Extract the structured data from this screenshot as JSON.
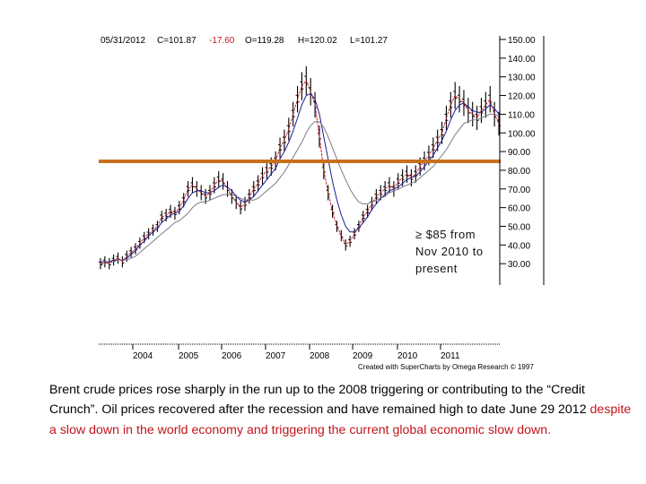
{
  "header": {
    "date": "05/31/2012",
    "close": "C=101.87",
    "change": "-17.60",
    "open": "O=119.28",
    "high": "H=120.02",
    "low": "L=101.27"
  },
  "annotation": [
    "≥ $85 from",
    "Nov 2010 to",
    "present"
  ],
  "credit": "Created with SuperCharts by Omega Research © 1997",
  "caption": {
    "part1": "Brent crude prices rose sharply in the run up to the 2008 triggering or contributing to the  “Credit Crunch”. Oil prices recovered after the recession and have remained high to date June 29  2012 ",
    "part2": "despite a slow down in the world economy and triggering the current global economic slow down."
  },
  "colors": {
    "threshold": "#c8701e",
    "ma_red": "#c0161c",
    "ma_blue": "#1c1c9c",
    "ma_gray": "#7a7a8a",
    "bars": "#000000",
    "caption_red": "#c0161c"
  },
  "chart_data": {
    "type": "line",
    "threshold": 85,
    "x_ticks": [
      "2004",
      "2005",
      "2006",
      "2007",
      "2008",
      "2009",
      "2010",
      "2011"
    ],
    "y_ticks": [
      "150.00",
      "140.00",
      "130.00",
      "120.00",
      "110.00",
      "100.00",
      "90.00",
      "80.00",
      "70.00",
      "60.00",
      "50.00",
      "40.00",
      "30.00"
    ],
    "ylim": [
      25,
      152
    ],
    "series": [
      {
        "values": [
          30,
          31,
          30,
          32,
          33,
          31,
          34,
          36,
          38,
          41,
          44,
          46,
          48,
          50,
          55,
          56,
          58,
          57,
          60,
          64,
          70,
          72,
          70,
          68,
          66,
          68,
          72,
          75,
          74,
          70,
          66,
          63,
          60,
          62,
          66,
          70,
          73,
          77,
          80,
          82,
          85,
          92,
          96,
          102,
          110,
          118,
          125,
          128,
          122,
          115,
          98,
          80,
          68,
          58,
          50,
          45,
          40,
          42,
          46,
          50,
          55,
          58,
          62,
          66,
          68,
          70,
          72,
          70,
          74,
          76,
          78,
          76,
          78,
          82,
          85,
          88,
          92,
          96,
          100,
          108,
          115,
          120,
          118,
          116,
          112,
          110,
          108,
          112,
          115,
          118,
          110,
          105
        ]
      },
      {
        "values": [
          31,
          31,
          31,
          32,
          32,
          32,
          33,
          35,
          37,
          40,
          42,
          45,
          47,
          49,
          52,
          54,
          56,
          57,
          58,
          61,
          65,
          68,
          69,
          69,
          68,
          68,
          69,
          71,
          72,
          71,
          69,
          66,
          64,
          63,
          64,
          66,
          69,
          72,
          75,
          78,
          81,
          86,
          90,
          95,
          101,
          108,
          115,
          120,
          121,
          118,
          110,
          98,
          86,
          74,
          64,
          56,
          50,
          47,
          47,
          49,
          52,
          55,
          59,
          62,
          65,
          67,
          69,
          70,
          71,
          73,
          75,
          76,
          77,
          79,
          82,
          85,
          88,
          92,
          96,
          101,
          107,
          112,
          115,
          116,
          114,
          112,
          111,
          111,
          113,
          115,
          113,
          110
        ]
      },
      {
        "values": [
          30,
          30,
          31,
          31,
          32,
          32,
          32,
          33,
          34,
          36,
          38,
          40,
          42,
          44,
          46,
          48,
          50,
          52,
          53,
          55,
          57,
          60,
          62,
          63,
          63,
          64,
          65,
          66,
          67,
          67,
          67,
          66,
          65,
          64,
          64,
          64,
          65,
          67,
          69,
          71,
          73,
          76,
          79,
          83,
          87,
          91,
          95,
          100,
          104,
          106,
          106,
          103,
          98,
          92,
          86,
          80,
          75,
          70,
          66,
          63,
          62,
          62,
          63,
          64,
          65,
          66,
          68,
          69,
          70,
          71,
          72,
          73,
          74,
          76,
          78,
          80,
          82,
          85,
          88,
          91,
          95,
          99,
          102,
          105,
          106,
          107,
          107,
          108,
          109,
          110,
          110,
          109
        ]
      }
    ]
  }
}
